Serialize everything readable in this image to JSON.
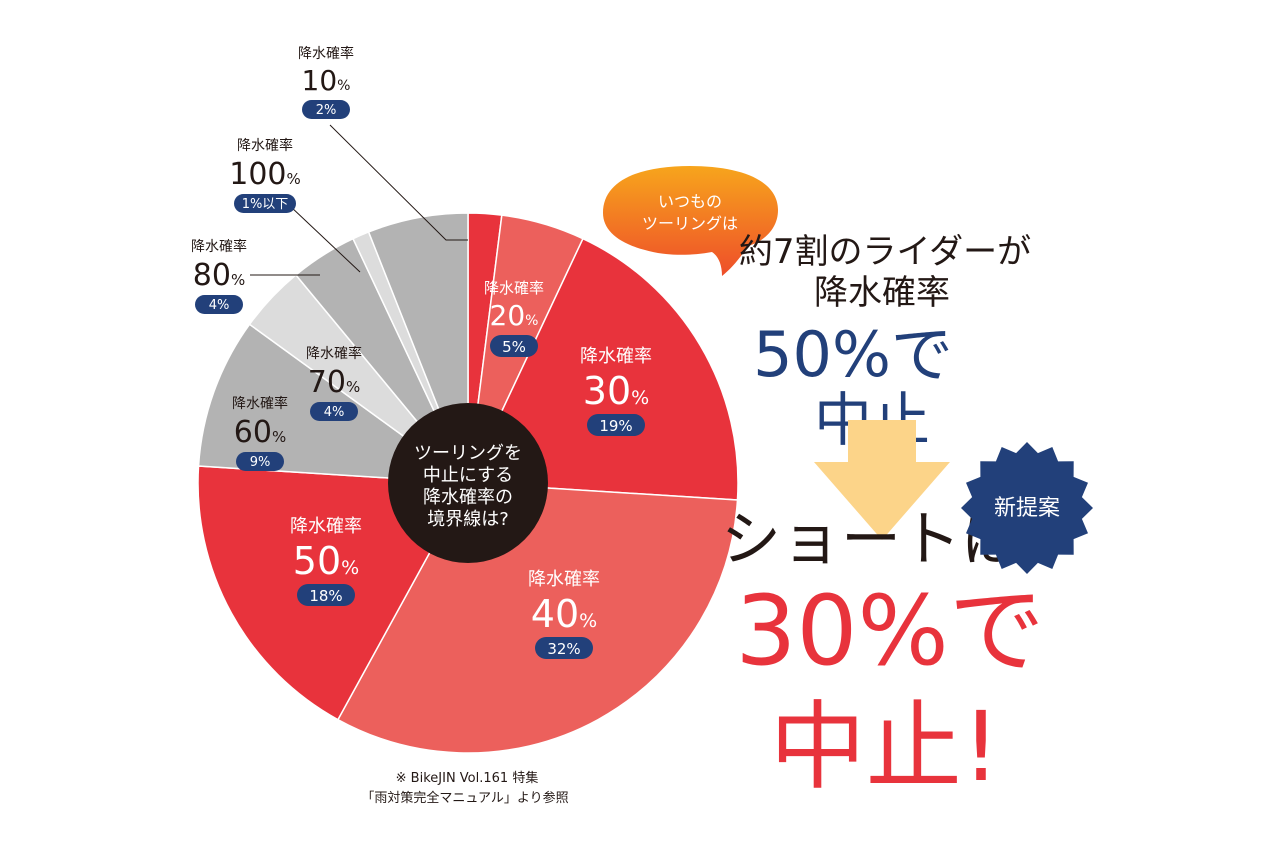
{
  "chart_data": {
    "type": "pie",
    "center_label": [
      "ツーリングを",
      "中止にする",
      "降水確率の",
      "境界線は?"
    ],
    "slices": [
      {
        "label": "降水確率",
        "value": 10,
        "share": 2,
        "share_text": "2%",
        "color": "#e8333c"
      },
      {
        "label": "降水確率",
        "value": 20,
        "share": 5,
        "share_text": "5%",
        "color": "#ec605c"
      },
      {
        "label": "降水確率",
        "value": 30,
        "share": 19,
        "share_text": "19%",
        "color": "#e8333c"
      },
      {
        "label": "降水確率",
        "value": 40,
        "share": 32,
        "share_text": "32%",
        "color": "#ec605c"
      },
      {
        "label": "降水確率",
        "value": 50,
        "share": 18,
        "share_text": "18%",
        "color": "#e8333c"
      },
      {
        "label": "降水確率",
        "value": 60,
        "share": 9,
        "share_text": "9%",
        "color": "#b3b3b3"
      },
      {
        "label": "降水確率",
        "value": 70,
        "share": 4,
        "share_text": "4%",
        "color": "#dcdcdc"
      },
      {
        "label": "降水確率",
        "value": 80,
        "share": 4,
        "share_text": "4%",
        "color": "#b3b3b3"
      },
      {
        "label": "降水確率",
        "value": 100,
        "share": 1,
        "share_text": "1%以下",
        "color": "#dcdcdc"
      },
      {
        "label": "降水確率",
        "value": null,
        "share": 6,
        "share_text": "",
        "color": "#b3b3b3"
      }
    ],
    "value_unit": "%",
    "source_note": [
      "※ BikeJIN Vol.161 特集",
      "「雨対策完全マニュアル」より参照"
    ]
  },
  "callout": {
    "bubble_text": [
      "いつもの",
      "ツーリングは"
    ],
    "headline_1": "約7割のライダーが",
    "headline_2": "降水確率",
    "headline_3": "50%で",
    "headline_4": "中止",
    "badge_text": "新提案",
    "short_text": "ショートは",
    "big_1": "30%で",
    "big_2": "中止!"
  },
  "colors": {
    "red": "#e8333c",
    "navy": "#22407a",
    "arrow": "#fcd489",
    "bubble_top": "#f7a51c",
    "bubble_bottom": "#ee4e2a"
  }
}
